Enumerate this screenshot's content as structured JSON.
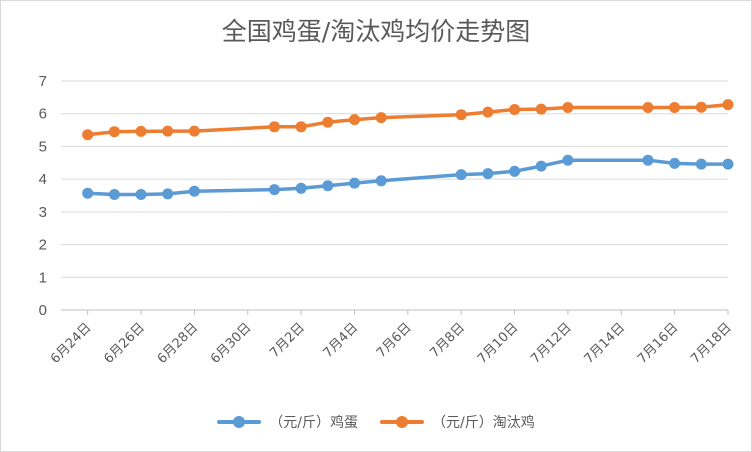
{
  "chart_data": {
    "type": "line",
    "title": "全国鸡蛋/淘汰鸡均价走势图",
    "x_tick_labels": [
      "6月24日",
      "6月26日",
      "6月28日",
      "6月30日",
      "7月2日",
      "7月4日",
      "7月6日",
      "7月8日",
      "7月10日",
      "7月12日",
      "7月14日",
      "7月16日",
      "7月18日"
    ],
    "y_ticks": [
      0,
      1,
      2,
      3,
      4,
      5,
      6,
      7
    ],
    "ylim": [
      0,
      7
    ],
    "x_start": "6月23日",
    "x_end": "7月18日",
    "grid": "horizontal",
    "legend": "bottom",
    "series": [
      {
        "name": "（元/斤）鸡蛋",
        "color": "#5b9bd5",
        "points": [
          {
            "x": "6月24日",
            "y": 3.57
          },
          {
            "x": "6月25日",
            "y": 3.53
          },
          {
            "x": "6月26日",
            "y": 3.53
          },
          {
            "x": "6月27日",
            "y": 3.55
          },
          {
            "x": "6月28日",
            "y": 3.63
          },
          {
            "x": "7月1日",
            "y": 3.68
          },
          {
            "x": "7月2日",
            "y": 3.72
          },
          {
            "x": "7月3日",
            "y": 3.8
          },
          {
            "x": "7月4日",
            "y": 3.88
          },
          {
            "x": "7月5日",
            "y": 3.95
          },
          {
            "x": "7月8日",
            "y": 4.14
          },
          {
            "x": "7月9日",
            "y": 4.17
          },
          {
            "x": "7月10日",
            "y": 4.24
          },
          {
            "x": "7月11日",
            "y": 4.4
          },
          {
            "x": "7月12日",
            "y": 4.58
          },
          {
            "x": "7月15日",
            "y": 4.58
          },
          {
            "x": "7月16日",
            "y": 4.48
          },
          {
            "x": "7月17日",
            "y": 4.46
          },
          {
            "x": "7月18日",
            "y": 4.46
          }
        ]
      },
      {
        "name": "（元/斤）淘汰鸡",
        "color": "#ed7d31",
        "points": [
          {
            "x": "6月24日",
            "y": 5.36
          },
          {
            "x": "6月25日",
            "y": 5.45
          },
          {
            "x": "6月26日",
            "y": 5.46
          },
          {
            "x": "6月27日",
            "y": 5.47
          },
          {
            "x": "6月28日",
            "y": 5.47
          },
          {
            "x": "7月1日",
            "y": 5.6
          },
          {
            "x": "7月2日",
            "y": 5.6
          },
          {
            "x": "7月3日",
            "y": 5.74
          },
          {
            "x": "7月4日",
            "y": 5.82
          },
          {
            "x": "7月5日",
            "y": 5.88
          },
          {
            "x": "7月8日",
            "y": 5.97
          },
          {
            "x": "7月9日",
            "y": 6.05
          },
          {
            "x": "7月10日",
            "y": 6.13
          },
          {
            "x": "7月11日",
            "y": 6.14
          },
          {
            "x": "7月12日",
            "y": 6.19
          },
          {
            "x": "7月15日",
            "y": 6.19
          },
          {
            "x": "7月16日",
            "y": 6.19
          },
          {
            "x": "7月17日",
            "y": 6.2
          },
          {
            "x": "7月18日",
            "y": 6.28
          }
        ]
      }
    ]
  }
}
